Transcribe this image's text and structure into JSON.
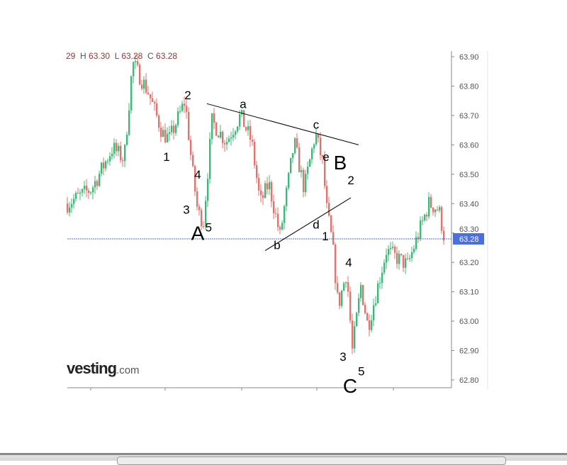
{
  "header": {
    "partial": "29",
    "h_label": "H",
    "h": "63.30",
    "l_label": "L",
    "l": "63.28",
    "c_label": "C",
    "c": "63.28"
  },
  "logo": {
    "text": "vesting",
    "suffix": ".com"
  },
  "colors": {
    "up": "#3cb878",
    "down": "#e0736b",
    "price_line": "#4a6fe3",
    "badge": "#4a6fe3",
    "annotation": "#000000"
  },
  "chart_data": {
    "type": "candlestick",
    "ylim": [
      62.78,
      63.92
    ],
    "y_ticks": [
      "63.90",
      "63.80",
      "63.70",
      "63.60",
      "63.50",
      "63.40",
      "63.30",
      "63.20",
      "63.10",
      "63.00",
      "62.90",
      "62.80"
    ],
    "current_price": "63.28",
    "grid": false,
    "price_path": [
      [
        0,
        63.4
      ],
      [
        17,
        63.45
      ],
      [
        32,
        63.59
      ],
      [
        40,
        63.55
      ],
      [
        46,
        63.88
      ],
      [
        57,
        63.78
      ],
      [
        67,
        63.64
      ],
      [
        72,
        63.62
      ],
      [
        83,
        63.75
      ],
      [
        88,
        63.52
      ],
      [
        92,
        63.37
      ],
      [
        96,
        63.34
      ],
      [
        102,
        63.68
      ],
      [
        112,
        63.61
      ],
      [
        122,
        63.7
      ],
      [
        130,
        63.61
      ],
      [
        136,
        63.4
      ],
      [
        142,
        63.47
      ],
      [
        150,
        63.29
      ],
      [
        160,
        63.61
      ],
      [
        167,
        63.45
      ],
      [
        175,
        63.64
      ],
      [
        180,
        63.54
      ],
      [
        183,
        63.38
      ],
      [
        187,
        63.26
      ],
      [
        191,
        63.05
      ],
      [
        197,
        63.17
      ],
      [
        201,
        62.9
      ],
      [
        207,
        63.12
      ],
      [
        212,
        62.98
      ],
      [
        225,
        63.24
      ],
      [
        240,
        63.19
      ],
      [
        255,
        63.4
      ],
      [
        262,
        63.38
      ],
      [
        266,
        63.28
      ]
    ],
    "annotations": [
      {
        "text": "2",
        "x": 85,
        "y": 63.77,
        "size": "small"
      },
      {
        "text": "a",
        "x": 124,
        "y": 63.74,
        "size": "small"
      },
      {
        "text": "c",
        "x": 175.5,
        "y": 63.67,
        "size": "small"
      },
      {
        "text": "1",
        "x": 70,
        "y": 63.56,
        "size": "small"
      },
      {
        "text": "e",
        "x": 182.5,
        "y": 63.56,
        "size": "small"
      },
      {
        "text": "B",
        "x": 192.5,
        "y": 63.54,
        "size": "large"
      },
      {
        "text": "4",
        "x": 92,
        "y": 63.5,
        "size": "small"
      },
      {
        "text": "2",
        "x": 189.5,
        "y": 63.48,
        "size": "small"
      },
      {
        "text": "3",
        "x": 84,
        "y": 63.38,
        "size": "small"
      },
      {
        "text": "A",
        "x": 92,
        "y": 63.3,
        "size": "large"
      },
      {
        "text": "5",
        "x": 96.5,
        "y": 63.32,
        "size": "small"
      },
      {
        "text": "d",
        "x": 175.5,
        "y": 63.33,
        "size": "small"
      },
      {
        "text": "1",
        "x": 182,
        "y": 63.29,
        "size": "small"
      },
      {
        "text": "b",
        "x": 148,
        "y": 63.26,
        "size": "small"
      },
      {
        "text": "4",
        "x": 198.5,
        "y": 63.2,
        "size": "small"
      },
      {
        "text": "3",
        "x": 194.5,
        "y": 62.88,
        "size": "small"
      },
      {
        "text": "5",
        "x": 201.5,
        "y": 62.83,
        "size": "small"
      },
      {
        "text": "C",
        "x": 199.5,
        "y": 62.78,
        "size": "large"
      }
    ],
    "trendlines": [
      {
        "from": [
          98.5,
          63.74
        ],
        "to": [
          205.5,
          63.6
        ]
      },
      {
        "from": [
          139.5,
          63.24
        ],
        "to": [
          200,
          63.42
        ]
      }
    ]
  }
}
